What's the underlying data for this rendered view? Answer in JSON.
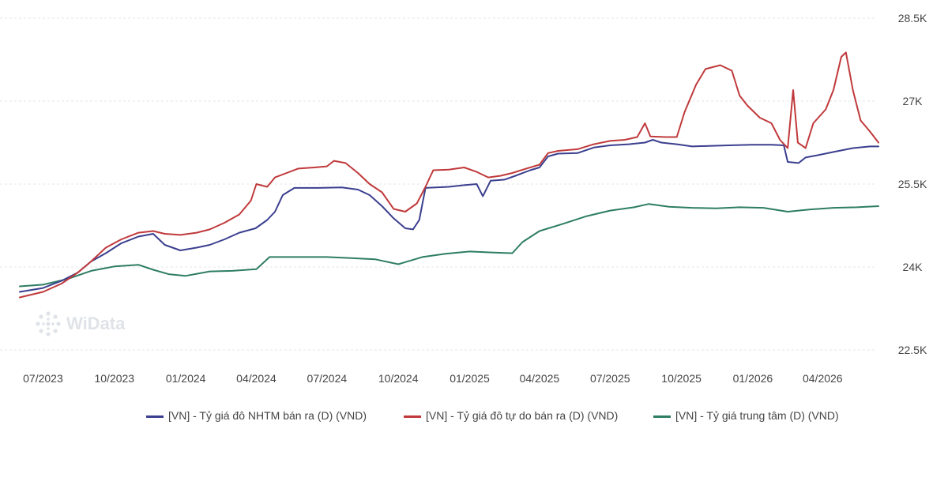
{
  "chart_data": {
    "type": "line",
    "title": "",
    "xlabel": "",
    "ylabel": "",
    "ylim": [
      22500,
      28500
    ],
    "y_ticks": [
      22500,
      24000,
      25500,
      27000,
      28500
    ],
    "y_tick_labels": [
      "22.5K",
      "24K",
      "25.5K",
      "27K",
      "28.5K"
    ],
    "y_axis_position": "right",
    "grid": true,
    "legend_position": "bottom",
    "x_ticks": [
      "2023-07-01",
      "2023-10-01",
      "2024-01-01",
      "2024-04-01",
      "2024-07-01",
      "2024-10-01",
      "2025-01-01",
      "2025-04-01",
      "2025-07-01",
      "2025-10-01",
      "2026-01-01",
      "2026-04-01"
    ],
    "x_tick_labels": [
      "07/2023",
      "10/2023",
      "01/2024",
      "04/2024",
      "07/2024",
      "10/2024",
      "01/2025",
      "04/2025",
      "07/2025",
      "10/2025",
      "01/2026",
      "04/2026"
    ],
    "series": [
      {
        "name": "[VN] - Tỷ giá đô NHTM bán ra (D) (VND)",
        "color": "#3b3f8f",
        "points": [
          [
            "2023-06-01",
            23550
          ],
          [
            "2023-07-01",
            23620
          ],
          [
            "2023-07-25",
            23750
          ],
          [
            "2023-08-15",
            23900
          ],
          [
            "2023-09-01",
            24100
          ],
          [
            "2023-09-20",
            24250
          ],
          [
            "2023-10-10",
            24430
          ],
          [
            "2023-11-01",
            24550
          ],
          [
            "2023-11-20",
            24600
          ],
          [
            "2023-12-05",
            24400
          ],
          [
            "2023-12-25",
            24300
          ],
          [
            "2024-01-15",
            24350
          ],
          [
            "2024-02-01",
            24400
          ],
          [
            "2024-02-20",
            24500
          ],
          [
            "2024-03-10",
            24620
          ],
          [
            "2024-03-31",
            24700
          ],
          [
            "2024-04-15",
            24850
          ],
          [
            "2024-04-25",
            25000
          ],
          [
            "2024-05-05",
            25300
          ],
          [
            "2024-05-20",
            25430
          ],
          [
            "2024-06-20",
            25430
          ],
          [
            "2024-07-20",
            25440
          ],
          [
            "2024-08-10",
            25400
          ],
          [
            "2024-08-25",
            25300
          ],
          [
            "2024-09-10",
            25100
          ],
          [
            "2024-09-25",
            24880
          ],
          [
            "2024-10-10",
            24700
          ],
          [
            "2024-10-20",
            24680
          ],
          [
            "2024-10-28",
            24850
          ],
          [
            "2024-11-05",
            25430
          ],
          [
            "2024-12-05",
            25450
          ],
          [
            "2024-12-25",
            25480
          ],
          [
            "2025-01-10",
            25500
          ],
          [
            "2025-01-18",
            25280
          ],
          [
            "2025-01-28",
            25560
          ],
          [
            "2025-02-15",
            25580
          ],
          [
            "2025-03-01",
            25650
          ],
          [
            "2025-03-20",
            25750
          ],
          [
            "2025-04-01",
            25800
          ],
          [
            "2025-04-12",
            26000
          ],
          [
            "2025-04-25",
            26050
          ],
          [
            "2025-05-20",
            26060
          ],
          [
            "2025-06-10",
            26160
          ],
          [
            "2025-07-01",
            26200
          ],
          [
            "2025-07-25",
            26220
          ],
          [
            "2025-08-15",
            26250
          ],
          [
            "2025-08-25",
            26300
          ],
          [
            "2025-09-05",
            26250
          ],
          [
            "2025-09-25",
            26220
          ],
          [
            "2025-10-15",
            26180
          ],
          [
            "2025-11-05",
            26190
          ],
          [
            "2025-12-01",
            26200
          ],
          [
            "2025-12-31",
            26210
          ],
          [
            "2026-01-25",
            26210
          ],
          [
            "2026-02-10",
            26200
          ],
          [
            "2026-02-15",
            25900
          ],
          [
            "2026-03-01",
            25880
          ],
          [
            "2026-03-10",
            25980
          ],
          [
            "2026-03-25",
            26020
          ],
          [
            "2026-04-15",
            26080
          ],
          [
            "2026-05-10",
            26150
          ],
          [
            "2026-06-01",
            26180
          ],
          [
            "2026-06-12",
            26180
          ]
        ]
      },
      {
        "name": "[VN] - Tỷ giá đô tự do bán ra (D) (VND)",
        "color": "#c0393b",
        "points": [
          [
            "2023-06-01",
            23450
          ],
          [
            "2023-07-01",
            23550
          ],
          [
            "2023-07-25",
            23700
          ],
          [
            "2023-08-15",
            23900
          ],
          [
            "2023-09-01",
            24100
          ],
          [
            "2023-09-20",
            24350
          ],
          [
            "2023-10-10",
            24500
          ],
          [
            "2023-11-01",
            24620
          ],
          [
            "2023-11-20",
            24650
          ],
          [
            "2023-12-05",
            24600
          ],
          [
            "2023-12-25",
            24580
          ],
          [
            "2024-01-15",
            24620
          ],
          [
            "2024-02-01",
            24680
          ],
          [
            "2024-02-20",
            24800
          ],
          [
            "2024-03-10",
            24950
          ],
          [
            "2024-03-25",
            25200
          ],
          [
            "2024-04-01",
            25500
          ],
          [
            "2024-04-15",
            25450
          ],
          [
            "2024-04-25",
            25620
          ],
          [
            "2024-05-10",
            25700
          ],
          [
            "2024-05-25",
            25780
          ],
          [
            "2024-06-15",
            25800
          ],
          [
            "2024-07-01",
            25820
          ],
          [
            "2024-07-10",
            25920
          ],
          [
            "2024-07-25",
            25880
          ],
          [
            "2024-08-10",
            25700
          ],
          [
            "2024-08-25",
            25500
          ],
          [
            "2024-09-10",
            25350
          ],
          [
            "2024-09-25",
            25050
          ],
          [
            "2024-10-10",
            25000
          ],
          [
            "2024-10-25",
            25150
          ],
          [
            "2024-11-05",
            25450
          ],
          [
            "2024-11-15",
            25750
          ],
          [
            "2024-12-05",
            25760
          ],
          [
            "2024-12-25",
            25800
          ],
          [
            "2025-01-10",
            25720
          ],
          [
            "2025-01-25",
            25620
          ],
          [
            "2025-02-10",
            25650
          ],
          [
            "2025-02-25",
            25700
          ],
          [
            "2025-03-15",
            25780
          ],
          [
            "2025-04-01",
            25850
          ],
          [
            "2025-04-12",
            26060
          ],
          [
            "2025-04-25",
            26100
          ],
          [
            "2025-05-20",
            26130
          ],
          [
            "2025-06-10",
            26220
          ],
          [
            "2025-07-01",
            26280
          ],
          [
            "2025-07-20",
            26300
          ],
          [
            "2025-08-05",
            26350
          ],
          [
            "2025-08-15",
            26600
          ],
          [
            "2025-08-22",
            26360
          ],
          [
            "2025-09-10",
            26350
          ],
          [
            "2025-09-25",
            26350
          ],
          [
            "2025-10-05",
            26800
          ],
          [
            "2025-10-20",
            27300
          ],
          [
            "2025-11-01",
            27580
          ],
          [
            "2025-11-20",
            27650
          ],
          [
            "2025-12-05",
            27550
          ],
          [
            "2025-12-15",
            27100
          ],
          [
            "2025-12-25",
            26920
          ],
          [
            "2026-01-10",
            26700
          ],
          [
            "2026-01-25",
            26600
          ],
          [
            "2026-02-05",
            26300
          ],
          [
            "2026-02-15",
            26150
          ],
          [
            "2026-02-22",
            27200
          ],
          [
            "2026-02-28",
            26250
          ],
          [
            "2026-03-10",
            26150
          ],
          [
            "2026-03-20",
            26600
          ],
          [
            "2026-04-05",
            26850
          ],
          [
            "2026-04-15",
            27200
          ],
          [
            "2026-04-25",
            27800
          ],
          [
            "2026-05-01",
            27880
          ],
          [
            "2026-05-10",
            27200
          ],
          [
            "2026-05-20",
            26650
          ],
          [
            "2026-06-01",
            26450
          ],
          [
            "2026-06-12",
            26250
          ]
        ]
      },
      {
        "name": "[VN] - Tỷ giá trung tâm (D) (VND)",
        "color": "#2e7d65",
        "points": [
          [
            "2023-06-01",
            23650
          ],
          [
            "2023-07-01",
            23680
          ],
          [
            "2023-08-01",
            23780
          ],
          [
            "2023-09-01",
            23930
          ],
          [
            "2023-10-01",
            24010
          ],
          [
            "2023-11-01",
            24040
          ],
          [
            "2023-11-20",
            23950
          ],
          [
            "2023-12-10",
            23870
          ],
          [
            "2024-01-01",
            23840
          ],
          [
            "2024-02-01",
            23920
          ],
          [
            "2024-03-01",
            23930
          ],
          [
            "2024-04-01",
            23960
          ],
          [
            "2024-04-18",
            24180
          ],
          [
            "2024-06-01",
            24180
          ],
          [
            "2024-07-01",
            24180
          ],
          [
            "2024-08-01",
            24160
          ],
          [
            "2024-09-01",
            24140
          ],
          [
            "2024-10-01",
            24050
          ],
          [
            "2024-11-01",
            24180
          ],
          [
            "2024-12-01",
            24240
          ],
          [
            "2025-01-01",
            24280
          ],
          [
            "2025-02-01",
            24260
          ],
          [
            "2025-02-25",
            24250
          ],
          [
            "2025-03-10",
            24450
          ],
          [
            "2025-04-01",
            24650
          ],
          [
            "2025-05-01",
            24780
          ],
          [
            "2025-06-01",
            24920
          ],
          [
            "2025-07-01",
            25020
          ],
          [
            "2025-08-01",
            25080
          ],
          [
            "2025-08-20",
            25140
          ],
          [
            "2025-09-15",
            25090
          ],
          [
            "2025-10-15",
            25070
          ],
          [
            "2025-11-15",
            25060
          ],
          [
            "2025-12-15",
            25080
          ],
          [
            "2026-01-15",
            25070
          ],
          [
            "2026-02-15",
            25000
          ],
          [
            "2026-03-15",
            25040
          ],
          [
            "2026-04-15",
            25070
          ],
          [
            "2026-05-15",
            25080
          ],
          [
            "2026-06-12",
            25100
          ]
        ]
      }
    ]
  },
  "legend": [
    {
      "label": "[VN] - Tỷ giá đô NHTM bán ra (D) (VND)",
      "color": "#3b3f8f"
    },
    {
      "label": "[VN] - Tỷ giá đô tự do bán ra (D) (VND)",
      "color": "#c0393b"
    },
    {
      "label": "[VN] - Tỷ giá trung tâm (D) (VND)",
      "color": "#2e7d65"
    }
  ],
  "watermark": {
    "text": "WiData"
  }
}
